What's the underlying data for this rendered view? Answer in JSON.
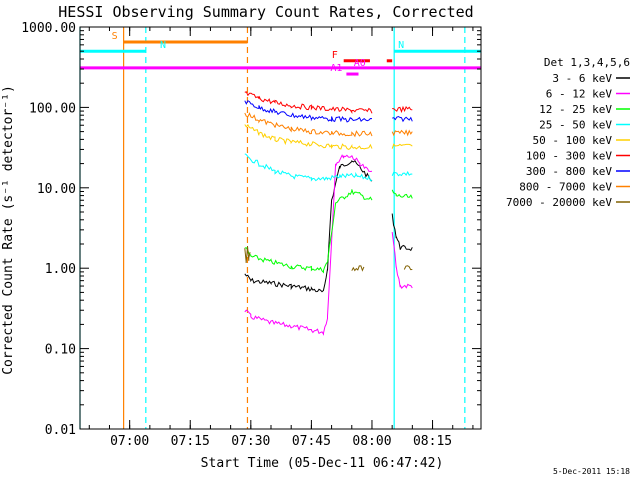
{
  "chart_data": {
    "type": "line",
    "title": "HESSI Observing Summary Count Rates, Corrected",
    "xlabel": "Start Time (05-Dec-11 06:47:42)",
    "ylabel": "Corrected Count Rate (s⁻¹ detector⁻¹)",
    "yscale": "log",
    "ylim": [
      0.01,
      1000
    ],
    "xlim": [
      "06:47:42",
      "08:27:00"
    ],
    "y_ticks": [
      "0.01",
      "0.10",
      "1.00",
      "10.00",
      "100.00",
      "1000.00"
    ],
    "x_ticks": [
      "07:00",
      "07:15",
      "07:30",
      "07:45",
      "08:00",
      "08:15"
    ],
    "legend_title": "Det 1,3,4,5,6",
    "legend_placement": "right",
    "timestamp": "5-Dec-2011 15:18",
    "series": [
      {
        "name": "3 - 6 keV",
        "color": "#000000",
        "segments": [
          [
            [
              "07:28:30",
              0.85
            ],
            [
              "07:30",
              0.7
            ],
            [
              "07:35",
              0.65
            ],
            [
              "07:40",
              0.6
            ],
            [
              "07:45",
              0.55
            ],
            [
              "07:48",
              0.5
            ],
            [
              "07:49",
              1.0
            ],
            [
              "07:50",
              7
            ],
            [
              "07:52",
              18
            ],
            [
              "07:55",
              22
            ],
            [
              "07:57",
              18
            ],
            [
              "08:00",
              12
            ]
          ],
          [
            [
              "08:05",
              4.5
            ],
            [
              "08:06",
              2.5
            ],
            [
              "08:07",
              1.8
            ],
            [
              "08:10",
              1.75
            ]
          ]
        ]
      },
      {
        "name": "6 - 12 keV",
        "color": "#ff00ff",
        "segments": [
          [
            [
              "07:28:30",
              0.3
            ],
            [
              "07:30",
              0.25
            ],
            [
              "07:35",
              0.21
            ],
            [
              "07:40",
              0.19
            ],
            [
              "07:45",
              0.17
            ],
            [
              "07:48",
              0.16
            ],
            [
              "07:49",
              0.25
            ],
            [
              "07:51",
              20
            ],
            [
              "07:53",
              25
            ],
            [
              "07:55",
              25
            ],
            [
              "07:57",
              20
            ],
            [
              "08:00",
              15
            ]
          ],
          [
            [
              "08:05",
              3
            ],
            [
              "08:06",
              1.0
            ],
            [
              "08:07",
              0.6
            ],
            [
              "08:10",
              0.6
            ]
          ]
        ]
      },
      {
        "name": "12 - 25 keV",
        "color": "#00ff00",
        "segments": [
          [
            [
              "07:28:30",
              1.8
            ],
            [
              "07:30",
              1.4
            ],
            [
              "07:35",
              1.2
            ],
            [
              "07:40",
              1.05
            ],
            [
              "07:45",
              1.0
            ],
            [
              "07:48",
              0.95
            ],
            [
              "07:49",
              1.2
            ],
            [
              "07:51",
              6.5
            ],
            [
              "07:55",
              9
            ],
            [
              "08:00",
              7
            ]
          ],
          [
            [
              "08:05",
              9
            ],
            [
              "08:06",
              8
            ],
            [
              "08:10",
              7.5
            ]
          ]
        ]
      },
      {
        "name": "25 - 50 keV",
        "color": "#00ffff",
        "segments": [
          [
            [
              "07:28:30",
              25
            ],
            [
              "07:32",
              20
            ],
            [
              "07:36",
              16
            ],
            [
              "07:40",
              14
            ],
            [
              "07:45",
              13
            ],
            [
              "07:49",
              13
            ],
            [
              "07:52",
              14
            ],
            [
              "07:56",
              14
            ],
            [
              "08:00",
              13
            ]
          ],
          [
            [
              "08:05",
              15
            ],
            [
              "08:10",
              15
            ]
          ]
        ]
      },
      {
        "name": "50 - 100 keV",
        "color": "#ffd000",
        "segments": [
          [
            [
              "07:28:30",
              60
            ],
            [
              "07:32",
              48
            ],
            [
              "07:36",
              40
            ],
            [
              "07:40",
              37
            ],
            [
              "07:45",
              35
            ],
            [
              "07:50",
              33
            ],
            [
              "07:55",
              32
            ],
            [
              "08:00",
              32
            ]
          ],
          [
            [
              "08:05",
              33
            ],
            [
              "08:10",
              33
            ]
          ]
        ]
      },
      {
        "name": "100 - 300 keV",
        "color": "#ff0000",
        "segments": [
          [
            [
              "07:28:30",
              150
            ],
            [
              "07:32",
              130
            ],
            [
              "07:36",
              115
            ],
            [
              "07:40",
              105
            ],
            [
              "07:45",
              100
            ],
            [
              "07:50",
              95
            ],
            [
              "07:55",
              92
            ],
            [
              "08:00",
              90
            ]
          ],
          [
            [
              "08:05",
              95
            ],
            [
              "08:10",
              95
            ]
          ]
        ]
      },
      {
        "name": "300 - 800 keV",
        "color": "#0000ff",
        "segments": [
          [
            [
              "07:28:30",
              120
            ],
            [
              "07:32",
              100
            ],
            [
              "07:36",
              88
            ],
            [
              "07:40",
              80
            ],
            [
              "07:45",
              75
            ],
            [
              "07:50",
              72
            ],
            [
              "07:55",
              70
            ],
            [
              "08:00",
              70
            ]
          ],
          [
            [
              "08:05",
              72
            ],
            [
              "08:10",
              72
            ]
          ]
        ]
      },
      {
        "name": "800 - 7000 keV",
        "color": "#ff8000",
        "segments": [
          [
            [
              "07:28:30",
              85
            ],
            [
              "07:32",
              70
            ],
            [
              "07:36",
              60
            ],
            [
              "07:40",
              54
            ],
            [
              "07:45",
              50
            ],
            [
              "07:50",
              48
            ],
            [
              "07:55",
              47
            ],
            [
              "08:00",
              47
            ]
          ],
          [
            [
              "08:05",
              48
            ],
            [
              "08:10",
              48
            ]
          ]
        ]
      },
      {
        "name": "7000 - 20000 keV",
        "color": "#806000",
        "segments": [
          [
            [
              "07:28:30",
              1.9
            ],
            [
              "07:28:50",
              1.2
            ],
            [
              "07:29:10",
              1.9
            ],
            [
              "07:29:30",
              1.3
            ],
            [
              "07:29:50",
              1.6
            ]
          ],
          [
            [
              "07:55",
              1.0
            ],
            [
              "07:58",
              1.0
            ]
          ],
          [
            [
              "08:08",
              1.0
            ],
            [
              "08:10",
              1.0
            ]
          ]
        ]
      }
    ],
    "flags": [
      {
        "label": "S",
        "color": "#ff8000",
        "level": 650,
        "start": "06:58:30",
        "end": "07:29:10"
      },
      {
        "label": "N",
        "color": "#00ffff",
        "level": 500,
        "start": "06:47:42",
        "end": "07:04:00"
      },
      {
        "label": "N",
        "color": "#00ffff",
        "level": 500,
        "start": "08:05:30",
        "end": "08:27:00"
      },
      {
        "label": "F",
        "color": "#ff0000",
        "level": 380,
        "start": "07:53:00",
        "end": "07:59:30"
      },
      {
        "label": "",
        "color": "#ff0000",
        "level": 380,
        "start": "08:03:40",
        "end": "08:05:00"
      },
      {
        "label": "A0",
        "color": "#ff00ff",
        "level": 310,
        "start": "06:47:42",
        "end": "08:27:00"
      },
      {
        "label": "A1",
        "color": "#ff00ff",
        "level": 260,
        "start": "07:53:40",
        "end": "07:56:40"
      }
    ],
    "vertical_markers": [
      {
        "time": "06:58:30",
        "color": "#ff8000",
        "style": "solid"
      },
      {
        "time": "07:04:00",
        "color": "#00ffff",
        "style": "dashed"
      },
      {
        "time": "07:29:10",
        "color": "#ff8000",
        "style": "dashed"
      },
      {
        "time": "08:05:30",
        "color": "#00ffff",
        "style": "solid"
      },
      {
        "time": "08:23:00",
        "color": "#00ffff",
        "style": "dashed"
      },
      {
        "time": "06:47:42",
        "color": "#00ffff",
        "style": "solid"
      }
    ]
  }
}
